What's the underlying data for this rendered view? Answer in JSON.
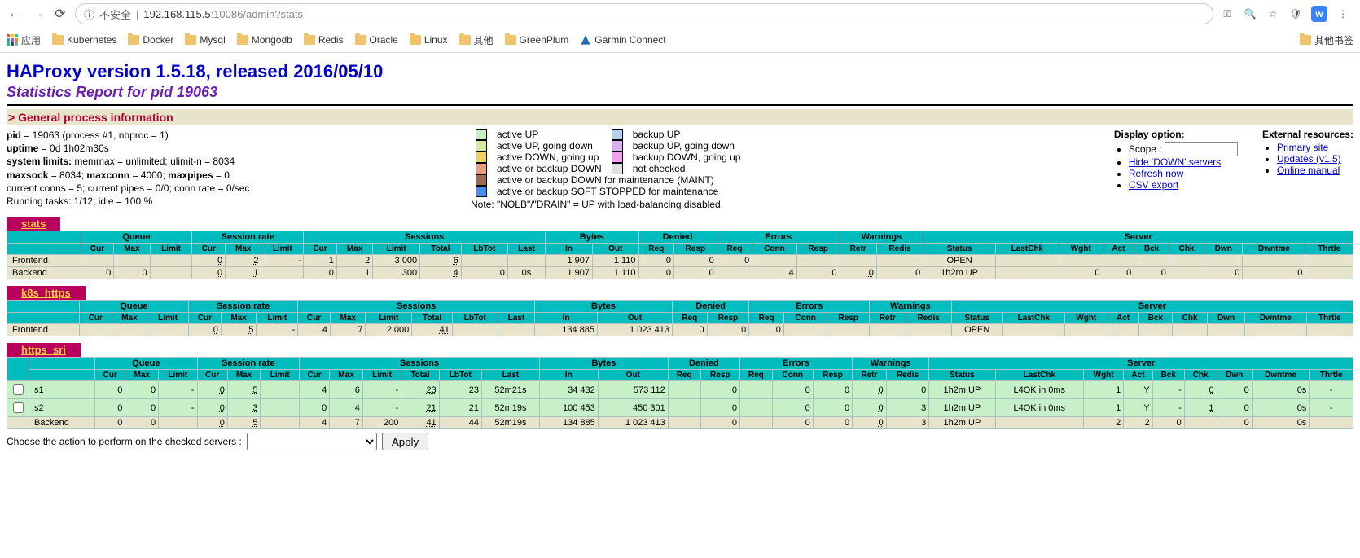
{
  "browser": {
    "insecure_label": "不安全",
    "url_host": "192.168.115.5",
    "url_port": ":10086",
    "url_path": "/admin?stats",
    "apps_label": "应用",
    "other_bookmarks": "其他书签",
    "bookmarks": [
      "Kubernetes",
      "Docker",
      "Mysql",
      "Mongodb",
      "Redis",
      "Oracle",
      "Linux",
      "其他",
      "GreenPlum"
    ],
    "garmin": "Garmin Connect"
  },
  "page": {
    "title": "HAProxy version 1.5.18, released 2016/05/10",
    "subtitle": "Statistics Report for pid 19063",
    "section_header": "> General process information",
    "info_lines": {
      "l1a": "pid",
      "l1b": " = 19063 (process #1, nbproc = 1)",
      "l2a": "uptime",
      "l2b": " = 0d 1h02m30s",
      "l3a": "system limits:",
      "l3b": " memmax = unlimited; ulimit-n = 8034",
      "l4a": "maxsock",
      "l4b": " = 8034; ",
      "l4c": "maxconn",
      "l4d": " = 4000; ",
      "l4e": "maxpipes",
      "l4f": " = 0",
      "l5": "current conns = 5; current pipes = 0/0; conn rate = 0/sec",
      "l6": "Running tasks: 1/12; idle = 100 %"
    },
    "legend": {
      "colors": {
        "active_up": "#c7f0c7",
        "active_up_going_down": "#d8e8a0",
        "active_down_going_up": "#f0d060",
        "active_backup_down": "#e7a080",
        "maint": "#9c6c50",
        "soft_stopped": "#4b8cf0",
        "backup_up": "#b8d0f0",
        "backup_up_going_down": "#d8b0f0",
        "backup_down_going_up": "#f0a0f0",
        "not_checked": "#e0e0e0"
      },
      "labels": {
        "active_up": "active UP",
        "active_up_going_down": "active UP, going down",
        "active_down_going_up": "active DOWN, going up",
        "active_backup_down": "active or backup DOWN",
        "maint": "active or backup DOWN for maintenance (MAINT)",
        "soft_stopped": "active or backup SOFT STOPPED for maintenance",
        "backup_up": "backup UP",
        "backup_up_going_down": "backup UP, going down",
        "backup_down_going_up": "backup DOWN, going up",
        "not_checked": "not checked"
      },
      "note": "Note: \"NOLB\"/\"DRAIN\" = UP with load-balancing disabled."
    },
    "display_option": {
      "title": "Display option:",
      "scope": "Scope :",
      "hide_down": "Hide 'DOWN' servers",
      "refresh": "Refresh now",
      "csv": "CSV export"
    },
    "external": {
      "title": "External resources:",
      "primary": "Primary site",
      "updates": "Updates (v1.5)",
      "manual": "Online manual"
    }
  },
  "headers": {
    "groups": [
      "",
      "Queue",
      "Session rate",
      "Sessions",
      "Bytes",
      "Denied",
      "Errors",
      "Warnings",
      "Server"
    ],
    "cols": [
      "",
      "Cur",
      "Max",
      "Limit",
      "Cur",
      "Max",
      "Limit",
      "Cur",
      "Max",
      "Limit",
      "Total",
      "LbTot",
      "Last",
      "In",
      "Out",
      "Req",
      "Resp",
      "Req",
      "Conn",
      "Resp",
      "Retr",
      "Redis",
      "Status",
      "LastChk",
      "Wght",
      "Act",
      "Bck",
      "Chk",
      "Dwn",
      "Dwntme",
      "Thrtle"
    ]
  },
  "proxies": {
    "stats": {
      "title": "stats",
      "frontend": [
        "Frontend",
        "",
        "",
        "",
        "0",
        "2",
        "-",
        "1",
        "2",
        "3 000",
        "6",
        "",
        "",
        "1 907",
        "1 110",
        "0",
        "0",
        "0",
        "",
        "",
        "",
        "",
        "OPEN",
        "",
        "",
        "",
        "",
        "",
        "",
        "",
        ""
      ],
      "backend": [
        "Backend",
        "0",
        "0",
        "",
        "0",
        "1",
        "",
        "0",
        "1",
        "300",
        "4",
        "0",
        "0s",
        "1 907",
        "1 110",
        "0",
        "0",
        "",
        "4",
        "0",
        "0",
        "0",
        "1h2m UP",
        "",
        "0",
        "0",
        "0",
        "",
        "0",
        "0",
        ""
      ]
    },
    "k8s_https": {
      "title": "k8s_https",
      "frontend": [
        "Frontend",
        "",
        "",
        "",
        "0",
        "5",
        "-",
        "4",
        "7",
        "2 000",
        "41",
        "",
        "",
        "134 885",
        "1 023 413",
        "0",
        "0",
        "0",
        "",
        "",
        "",
        "",
        "OPEN",
        "",
        "",
        "",
        "",
        "",
        "",
        "",
        ""
      ]
    },
    "https_sri": {
      "title": "https_sri",
      "s1": [
        "s1",
        "0",
        "0",
        "-",
        "0",
        "5",
        "",
        "4",
        "6",
        "-",
        "23",
        "23",
        "52m21s",
        "34 432",
        "573 112",
        "",
        "0",
        "",
        "0",
        "0",
        "0",
        "0",
        "1h2m UP",
        "L4OK in 0ms",
        "1",
        "Y",
        "-",
        "0",
        "0",
        "0s",
        "-"
      ],
      "s2": [
        "s2",
        "0",
        "0",
        "-",
        "0",
        "3",
        "",
        "0",
        "4",
        "-",
        "21",
        "21",
        "52m19s",
        "100 453",
        "450 301",
        "",
        "0",
        "",
        "0",
        "0",
        "0",
        "3",
        "1h2m UP",
        "L4OK in 0ms",
        "1",
        "Y",
        "-",
        "1",
        "0",
        "0s",
        "-"
      ],
      "backend": [
        "Backend",
        "0",
        "0",
        "",
        "0",
        "5",
        "",
        "4",
        "7",
        "200",
        "41",
        "44",
        "52m19s",
        "134 885",
        "1 023 413",
        "",
        "0",
        "",
        "0",
        "0",
        "0",
        "3",
        "1h2m UP",
        "",
        "2",
        "2",
        "0",
        "",
        "0",
        "0s",
        ""
      ]
    }
  },
  "action": {
    "label": "Choose the action to perform on the checked servers :",
    "apply": "Apply"
  }
}
